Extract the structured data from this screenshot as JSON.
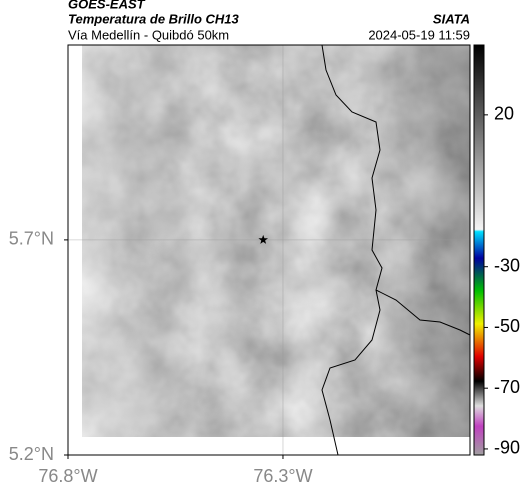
{
  "header": {
    "title": "GOES-EAST",
    "subtitle": "Temperatura de Brillo CH13",
    "source": "SIATA",
    "route": "Vía Medellín - Quibdó 50km",
    "datetime": "2024-05-19 11:59"
  },
  "map": {
    "xlim": [
      -76.8,
      -75.865
    ],
    "ylim": [
      5.2,
      6.153
    ],
    "xticks": [
      {
        "value": -76.8,
        "label": "76.8°W"
      },
      {
        "value": -76.3,
        "label": "76.3°W"
      }
    ],
    "yticks": [
      {
        "value": 5.7,
        "label": "5.7°N"
      },
      {
        "value": 5.2,
        "label": "5.2°N"
      }
    ],
    "marker": {
      "lon": -76.346,
      "lat": 5.7
    }
  },
  "colorbar": {
    "range": [
      -92,
      43
    ],
    "ticks": [
      20,
      -30,
      -50,
      -70,
      -90
    ]
  }
}
